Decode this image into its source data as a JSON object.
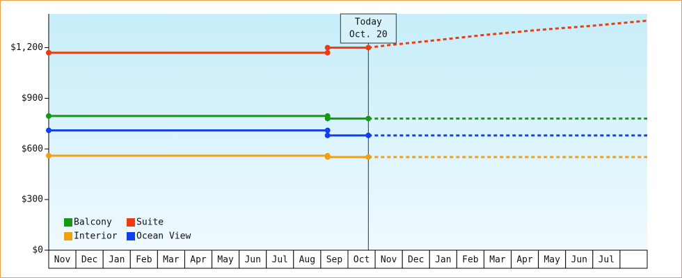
{
  "chart_data": {
    "type": "line",
    "categories": [
      "Nov",
      "Dec",
      "Jan",
      "Feb",
      "Mar",
      "Apr",
      "May",
      "Jun",
      "Jul",
      "Aug",
      "Sep",
      "Oct",
      "Nov",
      "Dec",
      "Jan",
      "Feb",
      "Mar",
      "Apr",
      "May",
      "Jun",
      "Jul",
      null
    ],
    "x": [
      0,
      10.25,
      10.25,
      11.75,
      12.5,
      14,
      16,
      18,
      20,
      22
    ],
    "xlim": [
      0,
      22
    ],
    "ylim": [
      0,
      1400
    ],
    "yticks": [
      {
        "value": 0,
        "label": "$0"
      },
      {
        "value": 300,
        "label": "$300"
      },
      {
        "value": 600,
        "label": "$600"
      },
      {
        "value": 900,
        "label": "$900"
      },
      {
        "value": 1200,
        "label": "$1,200"
      }
    ],
    "today": {
      "x": 11.75,
      "label": "Today",
      "date": "Oct. 20"
    },
    "legend": "bottom-left",
    "series": [
      {
        "name": "Balcony",
        "color": "#129a12",
        "values": [
          795,
          795,
          780,
          780,
          780,
          780,
          780,
          780,
          780,
          780
        ]
      },
      {
        "name": "Suite",
        "color": "#ee3a10",
        "values": [
          1170,
          1170,
          1200,
          1200,
          1215,
          1240,
          1275,
          1305,
          1330,
          1360
        ]
      },
      {
        "name": "Interior",
        "color": "#f0a010",
        "values": [
          560,
          560,
          552,
          552,
          552,
          552,
          552,
          552,
          552,
          552
        ]
      },
      {
        "name": "Ocean View",
        "color": "#1040ee",
        "values": [
          710,
          710,
          680,
          680,
          680,
          680,
          680,
          680,
          680,
          680
        ]
      }
    ]
  }
}
